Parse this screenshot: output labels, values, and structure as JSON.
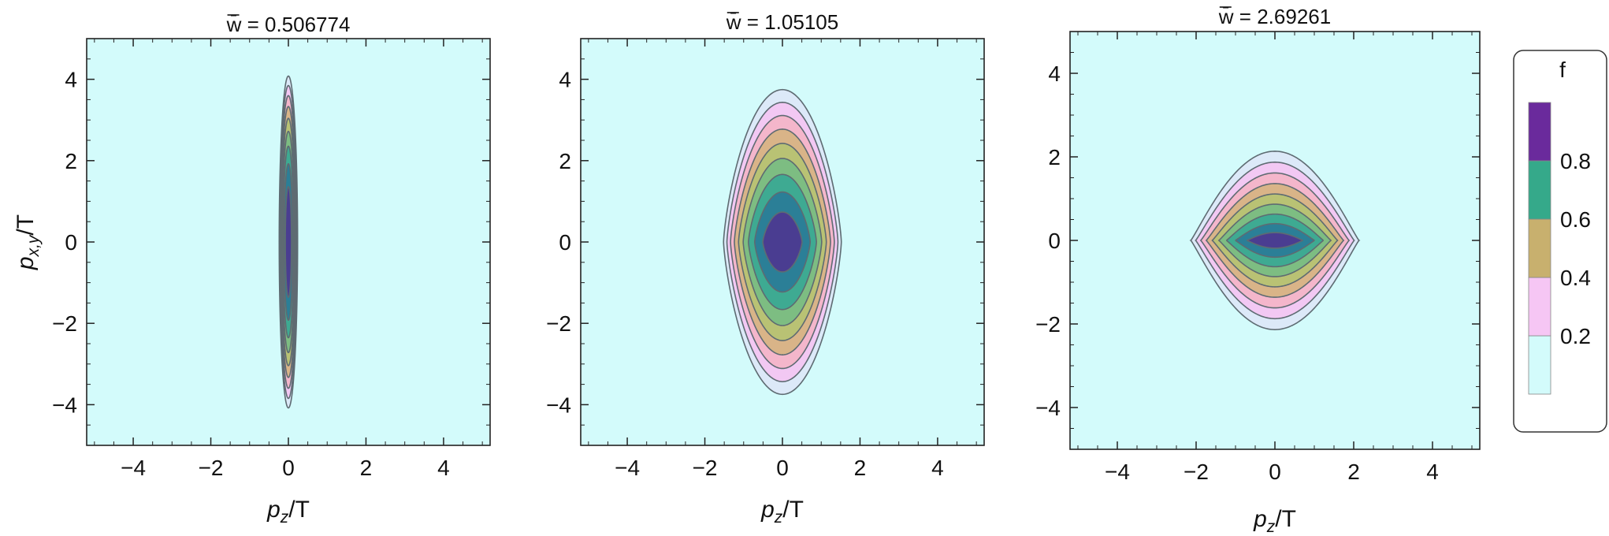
{
  "chart_data": [
    {
      "type": "contour",
      "title_prefix": "w̄ = ",
      "title_value": "0.506774",
      "xlabel_base": "p",
      "xlabel_sub": "z",
      "xlabel_tail": "/T",
      "ylabel_base": "p",
      "ylabel_sub": "x,y",
      "ylabel_tail": "/T",
      "xlim": [
        -5.2,
        5.2
      ],
      "ylim": [
        -5,
        5
      ],
      "xticks": [
        -4,
        -2,
        0,
        2,
        4
      ],
      "yticks": [
        -4,
        -2,
        0,
        2,
        4
      ],
      "xtick_labels": [
        "−4",
        "−2",
        "0",
        "2",
        "4"
      ],
      "ytick_labels": [
        "−4",
        "−2",
        "0",
        "2",
        "4"
      ],
      "a": 0.25,
      "b": 4.3,
      "n_shape": 2.0
    },
    {
      "type": "contour",
      "title_prefix": "w̄ = ",
      "title_value": "1.05105",
      "xlabel_base": "p",
      "xlabel_sub": "z",
      "xlabel_tail": "/T",
      "xlim": [
        -5.2,
        5.2
      ],
      "ylim": [
        -5,
        5
      ],
      "xticks": [
        -4,
        -2,
        0,
        2,
        4
      ],
      "yticks": [
        -4,
        -2,
        0,
        2,
        4
      ],
      "xtick_labels": [
        "−4",
        "−2",
        "0",
        "2",
        "4"
      ],
      "ytick_labels": [
        "−4",
        "−2",
        "0",
        "2",
        "4"
      ],
      "a": 1.6,
      "b": 4.05,
      "n_shape": 1.35
    },
    {
      "type": "contour",
      "title_prefix": "w̄ = ",
      "title_value": "2.69261",
      "xlabel_base": "p",
      "xlabel_sub": "z",
      "xlabel_tail": "/T",
      "xlim": [
        -5.2,
        5.2
      ],
      "ylim": [
        -5,
        5
      ],
      "xticks": [
        -4,
        -2,
        0,
        2,
        4
      ],
      "yticks": [
        -4,
        -2,
        0,
        2,
        4
      ],
      "xtick_labels": [
        "−4",
        "−2",
        "0",
        "2",
        "4"
      ],
      "ytick_labels": [
        "−4",
        "−2",
        "0",
        "2",
        "4"
      ],
      "a": 2.25,
      "b": 2.4,
      "n_shape": 0.9
    }
  ],
  "legend": {
    "title": "f",
    "tick_values": [
      0.2,
      0.4,
      0.6,
      0.8
    ],
    "tick_labels": [
      "0.2",
      "0.4",
      "0.6",
      "0.8"
    ],
    "bins": [
      {
        "from": 0.0,
        "to": 0.2,
        "color": "#d3fbfb"
      },
      {
        "from": 0.2,
        "to": 0.4,
        "color": "#f6c6f4"
      },
      {
        "from": 0.4,
        "to": 0.6,
        "color": "#c8b06e"
      },
      {
        "from": 0.6,
        "to": 0.8,
        "color": "#35a98a"
      },
      {
        "from": 0.8,
        "to": 1.0,
        "color": "#6a2a9c"
      }
    ]
  },
  "contour_levels": [
    {
      "level": 0.1,
      "color": "#dce9f8"
    },
    {
      "level": 0.2,
      "color": "#f2c8f3"
    },
    {
      "level": 0.3,
      "color": "#f4b6cb"
    },
    {
      "level": 0.4,
      "color": "#d9b488"
    },
    {
      "level": 0.5,
      "color": "#b9c274"
    },
    {
      "level": 0.6,
      "color": "#7dbd82"
    },
    {
      "level": 0.7,
      "color": "#3eaa92"
    },
    {
      "level": 0.8,
      "color": "#2b7f97"
    },
    {
      "level": 0.9,
      "color": "#4a3d91"
    }
  ],
  "colors": {
    "background_fill": "#d3fbfb",
    "contour_line": "#5e6b72",
    "frame": "#222222"
  }
}
